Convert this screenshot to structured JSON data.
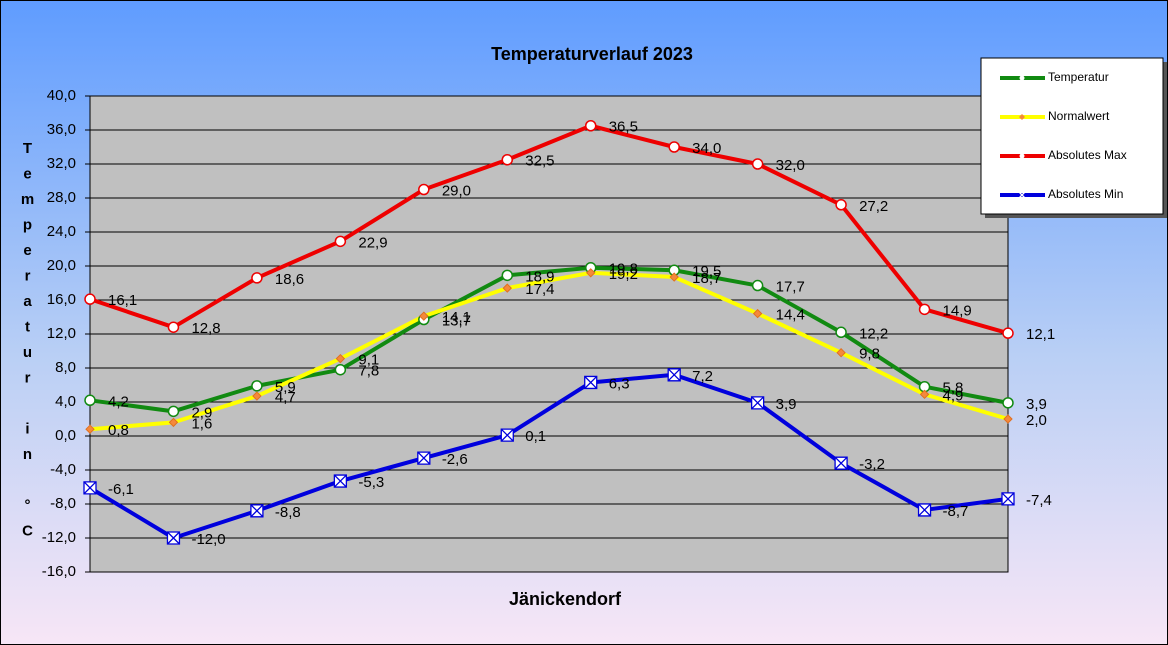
{
  "chart_data": {
    "type": "line",
    "title": "Temperaturverlauf  2023",
    "x_label": "Jänickendorf",
    "y_label": "Temperatur in °C",
    "categories": [
      null,
      null,
      null,
      null,
      null,
      null,
      null,
      null,
      null,
      null,
      null,
      null
    ],
    "ylim": [
      -16,
      40
    ],
    "yticks": [
      {
        "value": -16,
        "label": "-16,0"
      },
      {
        "value": -12,
        "label": "-12,0"
      },
      {
        "value": -8,
        "label": "-8,0"
      },
      {
        "value": -4,
        "label": "-4,0"
      },
      {
        "value": 0,
        "label": "0,0"
      },
      {
        "value": 4,
        "label": "4,0"
      },
      {
        "value": 8,
        "label": "8,0"
      },
      {
        "value": 12,
        "label": "12,0"
      },
      {
        "value": 16,
        "label": "16,0"
      },
      {
        "value": 20,
        "label": "20,0"
      },
      {
        "value": 24,
        "label": "24,0"
      },
      {
        "value": 28,
        "label": "28,0"
      },
      {
        "value": 32,
        "label": "32,0"
      },
      {
        "value": 36,
        "label": "36,0"
      },
      {
        "value": 40,
        "label": "40,0"
      }
    ],
    "grid": true,
    "legend": "upper right",
    "series": [
      {
        "name": "Temperatur",
        "color": "#118a11",
        "marker": "circle",
        "values": [
          4.2,
          2.9,
          5.9,
          7.8,
          13.7,
          18.9,
          19.8,
          19.5,
          17.7,
          12.2,
          5.8,
          3.9
        ],
        "value_labels": [
          "4,2",
          "2,9",
          "5,9",
          "7,8",
          "13,7",
          "18,9",
          "19,8",
          "19,5",
          "17,7",
          "12,2",
          "5,8",
          "3,9"
        ]
      },
      {
        "name": "Normalwert",
        "color": "#ffff00",
        "marker": "diamond",
        "values": [
          0.8,
          1.6,
          4.7,
          9.1,
          14.1,
          17.4,
          19.2,
          18.7,
          14.4,
          9.8,
          4.9,
          2.0
        ],
        "value_labels": [
          "0,8",
          "1,6",
          "4,7",
          "9,1",
          "14,1",
          "17,4",
          "19,2",
          "18,7",
          "14,4",
          "9,8",
          "4,9",
          "2,0"
        ]
      },
      {
        "name": "Absolutes Max",
        "color": "#ee0000",
        "marker": "circle",
        "values": [
          16.1,
          12.8,
          18.6,
          22.9,
          29.0,
          32.5,
          36.5,
          34.0,
          32.0,
          27.2,
          14.9,
          12.1
        ],
        "value_labels": [
          "16,1",
          "12,8",
          "18,6",
          "22,9",
          "29,0",
          "32,5",
          "36,5",
          "34,0",
          "32,0",
          "27,2",
          "14,9",
          "12,1"
        ]
      },
      {
        "name": "Absolutes Min",
        "color": "#0000dd",
        "marker": "x",
        "values": [
          -6.1,
          -12.0,
          -8.8,
          -5.3,
          -2.6,
          0.1,
          6.3,
          7.2,
          3.9,
          -3.2,
          -8.7,
          -7.4
        ],
        "value_labels": [
          "-6,1",
          "-12,0",
          "-8,8",
          "-5,3",
          "-2,6",
          "0,1",
          "6,3",
          "7,2",
          "3,9",
          "-3,2",
          "-8,7",
          "-7,4"
        ]
      }
    ]
  }
}
